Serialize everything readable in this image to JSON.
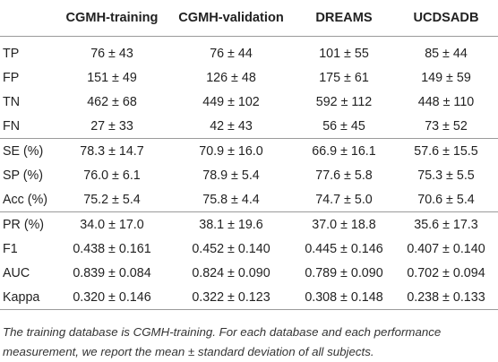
{
  "table": {
    "header": {
      "corner": "",
      "columns": [
        "CGMH-training",
        "CGMH-validation",
        "DREAMS",
        "UCDSADB"
      ]
    },
    "groups": [
      {
        "rows": [
          {
            "label": "TP",
            "values": [
              "76 ± 43",
              "76 ± 44",
              "101 ± 55",
              "85 ± 44"
            ]
          },
          {
            "label": "FP",
            "values": [
              "151 ± 49",
              "126 ± 48",
              "175 ± 61",
              "149 ± 59"
            ]
          },
          {
            "label": "TN",
            "values": [
              "462 ± 68",
              "449 ± 102",
              "592 ± 112",
              "448 ± 110"
            ]
          },
          {
            "label": "FN",
            "values": [
              "27 ± 33",
              "42 ± 43",
              "56 ± 45",
              "73 ± 52"
            ]
          }
        ]
      },
      {
        "rows": [
          {
            "label": "SE (%)",
            "values": [
              "78.3 ± 14.7",
              "70.9 ± 16.0",
              "66.9 ± 16.1",
              "57.6 ± 15.5"
            ]
          },
          {
            "label": "SP (%)",
            "values": [
              "76.0 ± 6.1",
              "78.9 ± 5.4",
              "77.6 ± 5.8",
              "75.3 ± 5.5"
            ]
          },
          {
            "label": "Acc (%)",
            "values": [
              "75.2 ± 5.4",
              "75.8 ± 4.4",
              "74.7 ± 5.0",
              "70.6 ± 5.4"
            ]
          }
        ]
      },
      {
        "rows": [
          {
            "label": "PR (%)",
            "values": [
              "34.0 ± 17.0",
              "38.1 ± 19.6",
              "37.0 ± 18.8",
              "35.6 ± 17.3"
            ]
          },
          {
            "label": "F1",
            "values": [
              "0.438 ± 0.161",
              "0.452 ± 0.140",
              "0.445 ± 0.146",
              "0.407 ± 0.140"
            ]
          },
          {
            "label": "AUC",
            "values": [
              "0.839 ± 0.084",
              "0.824 ± 0.090",
              "0.789 ± 0.090",
              "0.702 ± 0.094"
            ]
          },
          {
            "label": "Kappa",
            "values": [
              "0.320 ± 0.146",
              "0.322 ± 0.123",
              "0.308 ± 0.148",
              "0.238 ± 0.133"
            ]
          }
        ]
      }
    ]
  },
  "footnote": "The training database is CGMH-training. For each database and each performance measurement, we report the mean ± standard deviation of all subjects."
}
